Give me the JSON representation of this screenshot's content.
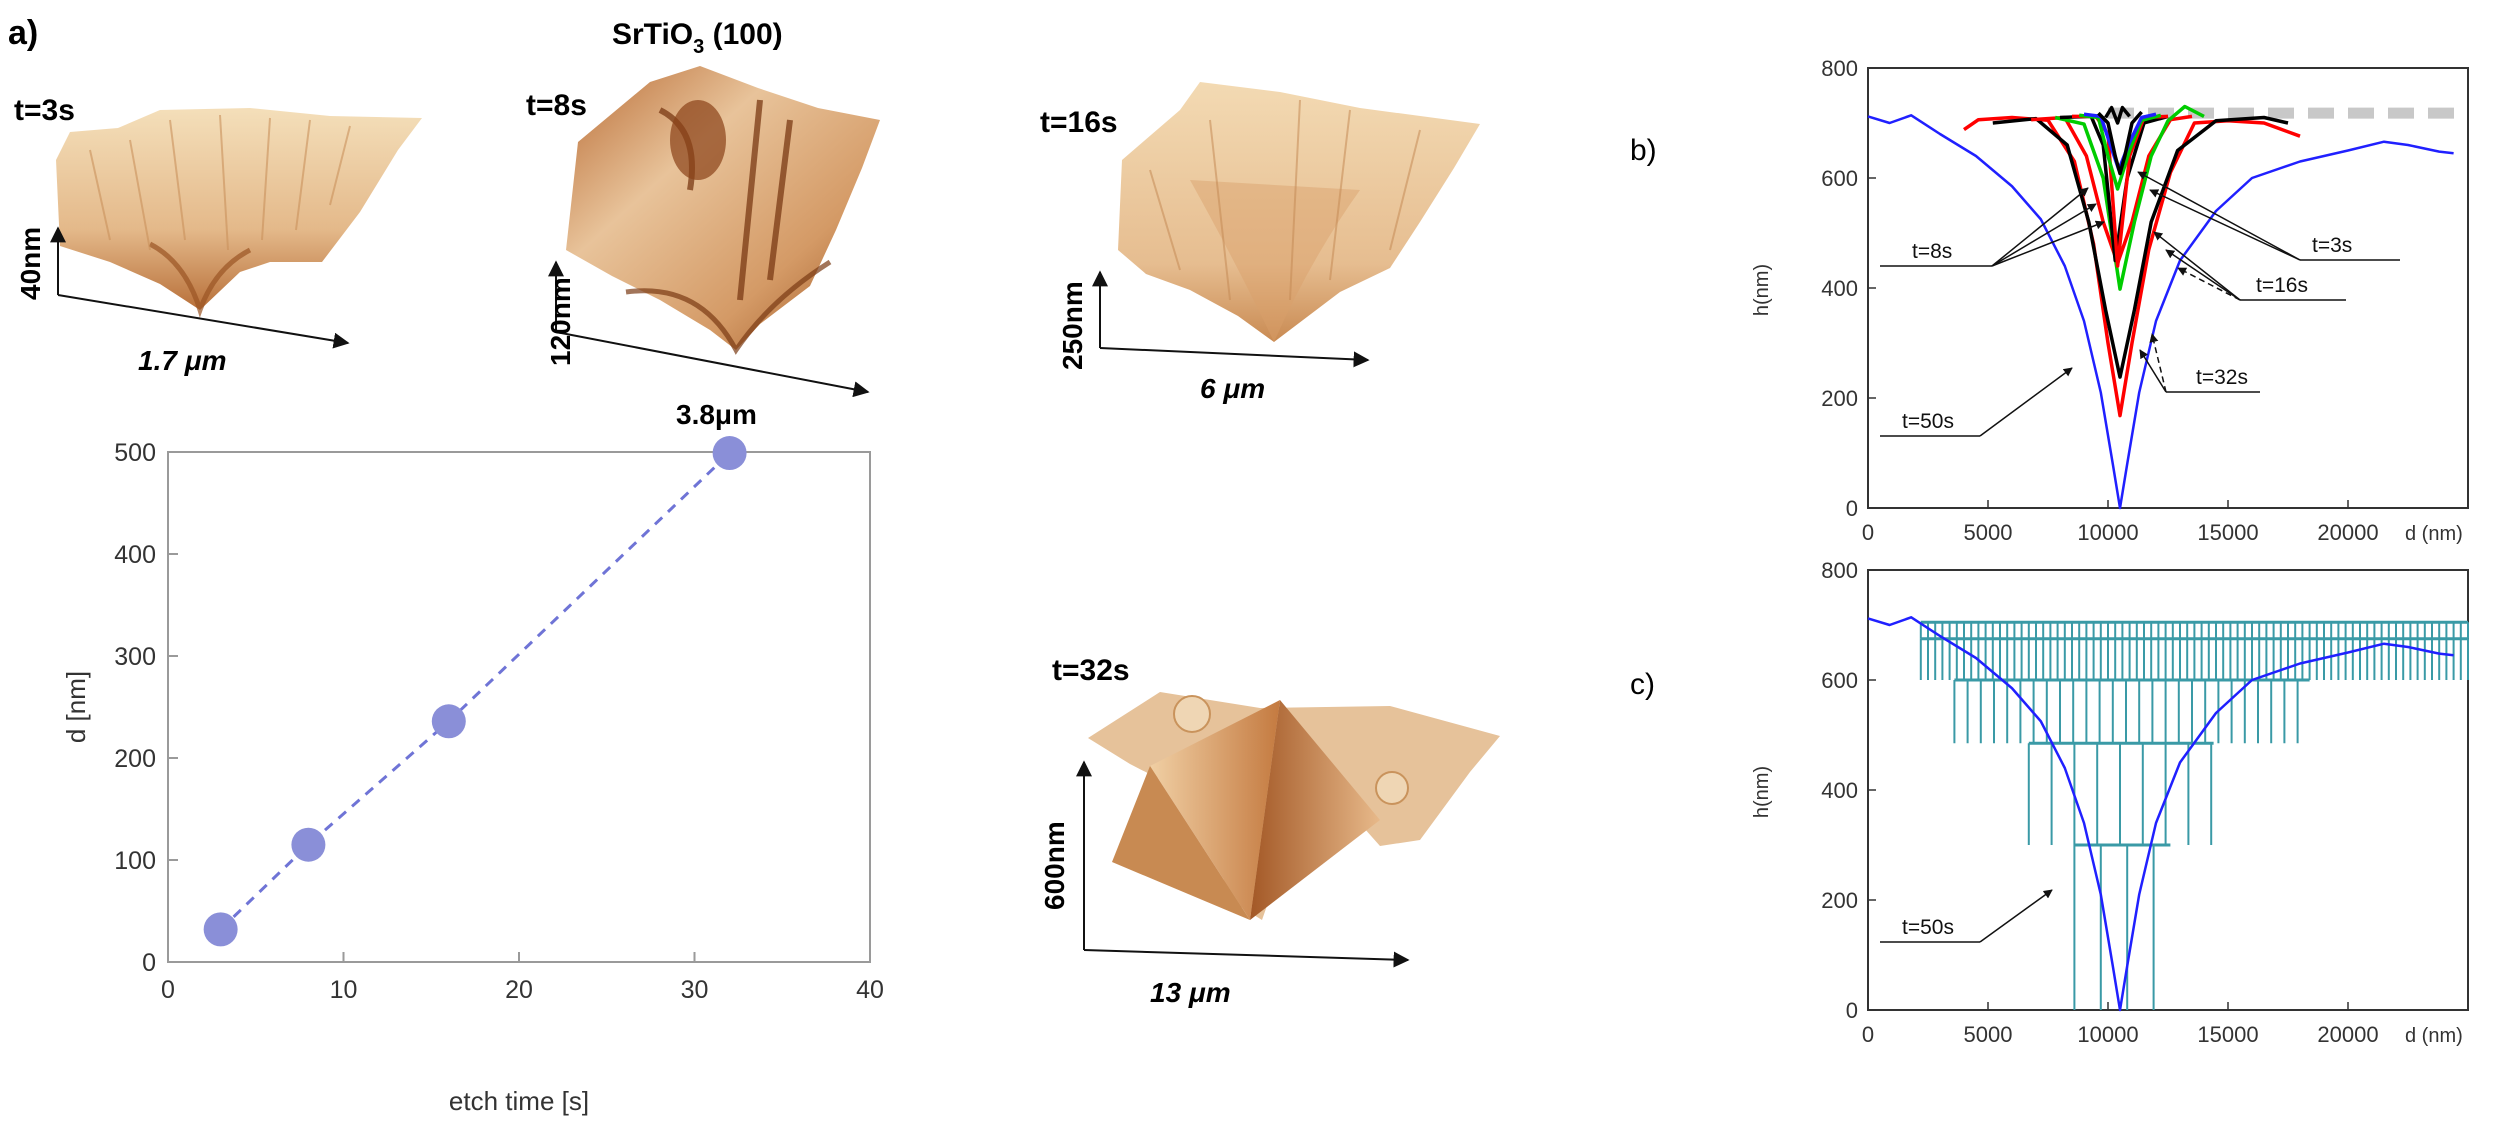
{
  "panel_labels": {
    "a": "a)",
    "b": "b)",
    "c": "c)"
  },
  "afm": {
    "material_main": "SrTiO",
    "material_sub": "3",
    "material_tail": " (100)",
    "images": [
      {
        "time": "t=3s",
        "height": "40nm",
        "width": "1.7 μm"
      },
      {
        "time": "t=8s",
        "height": "120nm",
        "width": "3.8μm"
      },
      {
        "time": "t=16s",
        "height": "250nm",
        "width": "6 μm"
      },
      {
        "time": "t=32s",
        "height": "600nm",
        "width": "13 μm"
      }
    ],
    "colors": {
      "light": "#f3dcb7",
      "mid": "#dba26d",
      "dark": "#a85a27",
      "deep": "#7a3a14"
    }
  },
  "chart_data": [
    {
      "id": "a",
      "type": "scatter",
      "xlabel": "etch time [s]",
      "ylabel": "d [nm]",
      "xlim": [
        0,
        40
      ],
      "ylim": [
        0,
        500
      ],
      "xticks": [
        0,
        10,
        20,
        30,
        40
      ],
      "yticks": [
        0,
        100,
        200,
        300,
        400,
        500
      ],
      "points": [
        {
          "x": 3,
          "y": 32
        },
        {
          "x": 8,
          "y": 115
        },
        {
          "x": 16,
          "y": 236
        },
        {
          "x": 32,
          "y": 499
        }
      ],
      "trend_line": "dashed",
      "marker_color": "#8a8fd8",
      "line_color": "#6f74d6"
    },
    {
      "id": "b",
      "type": "line",
      "xlabel": "d (nm)",
      "ylabel": "h(nm)",
      "xlim": [
        0,
        25000
      ],
      "ylim": [
        0,
        800
      ],
      "xticks": [
        0,
        5000,
        10000,
        15000,
        20000
      ],
      "yticks": [
        0,
        200,
        400,
        600,
        800
      ],
      "reference_line": {
        "y": 718,
        "style": "dashed",
        "color": "#c8c8c8"
      },
      "series": [
        {
          "color": "#2020ff",
          "points": [
            [
              0,
              712
            ],
            [
              900,
              700
            ],
            [
              1800,
              714
            ],
            [
              3000,
              680
            ],
            [
              4500,
              640
            ],
            [
              6000,
              585
            ],
            [
              7200,
              525
            ],
            [
              8200,
              440
            ],
            [
              9000,
              340
            ],
            [
              9700,
              210
            ],
            [
              10200,
              80
            ],
            [
              10500,
              0
            ],
            [
              10800,
              80
            ],
            [
              11300,
              210
            ],
            [
              12000,
              340
            ],
            [
              13000,
              450
            ],
            [
              14500,
              540
            ],
            [
              16000,
              600
            ],
            [
              18000,
              630
            ],
            [
              20000,
              650
            ],
            [
              21500,
              666
            ],
            [
              22500,
              660
            ],
            [
              23800,
              648
            ],
            [
              24400,
              645
            ]
          ]
        },
        {
          "color": "#ff0000",
          "points": [
            [
              4000,
              688
            ],
            [
              4600,
              706
            ],
            [
              6000,
              710
            ],
            [
              7500,
              705
            ],
            [
              8600,
              630
            ],
            [
              9400,
              480
            ],
            [
              10000,
              300
            ],
            [
              10500,
              168
            ],
            [
              11000,
              300
            ],
            [
              11700,
              470
            ],
            [
              12600,
              610
            ],
            [
              13600,
              700
            ],
            [
              15000,
              704
            ],
            [
              16500,
              700
            ],
            [
              18000,
              676
            ]
          ]
        },
        {
          "color": "#000000",
          "points": [
            [
              5200,
              700
            ],
            [
              7000,
              708
            ],
            [
              8300,
              660
            ],
            [
              9200,
              520
            ],
            [
              9900,
              360
            ],
            [
              10500,
              238
            ],
            [
              11100,
              360
            ],
            [
              11800,
              520
            ],
            [
              12900,
              650
            ],
            [
              14500,
              704
            ],
            [
              16500,
              710
            ],
            [
              17500,
              700
            ]
          ]
        },
        {
          "color": "#ff0000",
          "points": [
            [
              6800,
              706
            ],
            [
              8200,
              710
            ],
            [
              9100,
              640
            ],
            [
              9800,
              520
            ],
            [
              10400,
              445
            ],
            [
              11000,
              520
            ],
            [
              11700,
              640
            ],
            [
              12600,
              706
            ],
            [
              13500,
              712
            ]
          ]
        },
        {
          "color": "#00cc00",
          "points": [
            [
              7800,
              710
            ],
            [
              9000,
              698
            ],
            [
              9800,
              600
            ],
            [
              10500,
              398
            ],
            [
              11100,
              520
            ],
            [
              11800,
              640
            ],
            [
              12500,
              704
            ],
            [
              13200,
              730
            ],
            [
              14000,
              712
            ]
          ]
        },
        {
          "color": "#000000",
          "points": [
            [
              8000,
              710
            ],
            [
              9300,
              712
            ],
            [
              9800,
              660
            ],
            [
              10300,
              450
            ],
            [
              10800,
              600
            ],
            [
              11500,
              700
            ],
            [
              12500,
              712
            ]
          ]
        },
        {
          "color": "#ff0000",
          "points": [
            [
              8500,
              712
            ],
            [
              9500,
              712
            ],
            [
              10000,
              680
            ],
            [
              10400,
              440
            ],
            [
              10900,
              640
            ],
            [
              11500,
              710
            ],
            [
              12500,
              712
            ]
          ]
        },
        {
          "color": "#00cc00",
          "points": [
            [
              8800,
              714
            ],
            [
              9600,
              710
            ],
            [
              10000,
              640
            ],
            [
              10400,
              580
            ],
            [
              10900,
              650
            ],
            [
              11400,
              705
            ],
            [
              12200,
              714
            ]
          ]
        },
        {
          "color": "#2020ff",
          "points": [
            [
              9000,
              716
            ],
            [
              9700,
              712
            ],
            [
              10100,
              660
            ],
            [
              10450,
              615
            ],
            [
              10900,
              665
            ],
            [
              11400,
              710
            ],
            [
              12000,
              716
            ]
          ]
        },
        {
          "color": "#000000",
          "points": [
            [
              9600,
              718
            ],
            [
              10000,
              700
            ],
            [
              10300,
              640
            ],
            [
              10500,
              608
            ],
            [
              10700,
              640
            ],
            [
              11000,
              700
            ],
            [
              11400,
              720
            ]
          ]
        },
        {
          "color": "#000000",
          "points": [
            [
              9900,
              710
            ],
            [
              10150,
              728
            ],
            [
              10400,
              700
            ],
            [
              10600,
              728
            ],
            [
              10900,
              712
            ]
          ]
        }
      ],
      "labels": [
        "t=8s",
        "t=3s",
        "t=16s",
        "t=32s",
        "t=50s"
      ]
    },
    {
      "id": "c",
      "type": "line",
      "xlabel": "d (nm)",
      "ylabel": "h(nm)",
      "xlim": [
        0,
        25000
      ],
      "ylim": [
        0,
        800
      ],
      "xticks": [
        0,
        5000,
        10000,
        15000,
        20000
      ],
      "yticks": [
        0,
        200,
        400,
        600,
        800
      ],
      "series": [
        {
          "color": "#2020ff",
          "points": [
            [
              0,
              712
            ],
            [
              900,
              700
            ],
            [
              1800,
              714
            ],
            [
              3000,
              680
            ],
            [
              4500,
              640
            ],
            [
              6000,
              585
            ],
            [
              7200,
              525
            ],
            [
              8200,
              440
            ],
            [
              9000,
              340
            ],
            [
              9700,
              210
            ],
            [
              10200,
              80
            ],
            [
              10500,
              0
            ],
            [
              10800,
              80
            ],
            [
              11300,
              210
            ],
            [
              12000,
              340
            ],
            [
              13000,
              450
            ],
            [
              14500,
              540
            ],
            [
              16000,
              600
            ],
            [
              18000,
              630
            ],
            [
              20000,
              650
            ],
            [
              21500,
              666
            ],
            [
              22500,
              660
            ],
            [
              23800,
              648
            ],
            [
              24400,
              645
            ]
          ]
        }
      ],
      "terrace_levels": [
        {
          "y": 705,
          "x0": 2200,
          "x1": 25000,
          "step": 300
        },
        {
          "y": 675,
          "x0": 2200,
          "x1": 25000,
          "step": 300
        },
        {
          "y": 600,
          "x0": 3600,
          "x1": 18400,
          "step": 550
        },
        {
          "y": 485,
          "x0": 6700,
          "x1": 14400,
          "step": 950
        },
        {
          "y": 300,
          "x0": 8600,
          "x1": 12600,
          "step": 1100
        },
        {
          "y": 0,
          "x0": 10500,
          "x1": 10500,
          "step": 1
        }
      ],
      "terrace_color": "#3a9aa6",
      "labels": [
        "t=50s"
      ]
    }
  ]
}
